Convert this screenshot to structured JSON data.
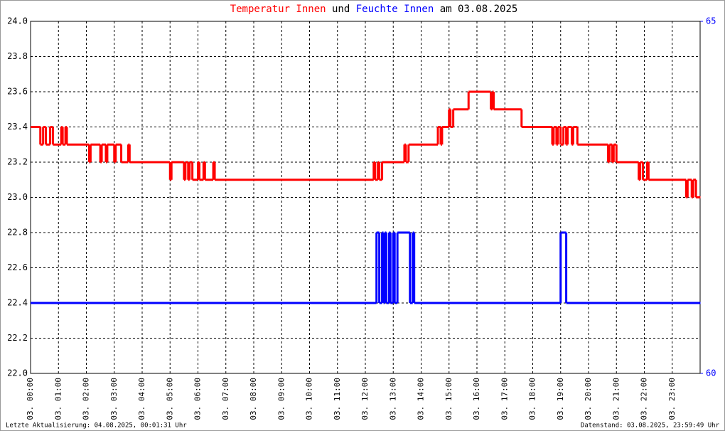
{
  "chart_data": {
    "type": "step-line",
    "title_parts": [
      "und",
      "am 03.08.2025"
    ],
    "footer_left": "Letzte Aktualisierung: 04.08.2025, 00:01:31 Uhr",
    "footer_right": "Datenstand: 03.08.2025, 23:59:49 Uhr",
    "xlim": [
      0,
      24
    ],
    "xticks": [
      {
        "value": 0,
        "label": "03. 00:00"
      },
      {
        "value": 1,
        "label": "03. 01:00"
      },
      {
        "value": 2,
        "label": "03. 02:00"
      },
      {
        "value": 3,
        "label": "03. 03:00"
      },
      {
        "value": 4,
        "label": "03. 04:00"
      },
      {
        "value": 5,
        "label": "03. 05:00"
      },
      {
        "value": 6,
        "label": "03. 06:00"
      },
      {
        "value": 7,
        "label": "03. 07:00"
      },
      {
        "value": 8,
        "label": "03. 08:00"
      },
      {
        "value": 9,
        "label": "03. 09:00"
      },
      {
        "value": 10,
        "label": "03. 10:00"
      },
      {
        "value": 11,
        "label": "03. 11:00"
      },
      {
        "value": 12,
        "label": "03. 12:00"
      },
      {
        "value": 13,
        "label": "03. 13:00"
      },
      {
        "value": 14,
        "label": "03. 14:00"
      },
      {
        "value": 15,
        "label": "03. 15:00"
      },
      {
        "value": 16,
        "label": "03. 16:00"
      },
      {
        "value": 17,
        "label": "03. 17:00"
      },
      {
        "value": 18,
        "label": "03. 18:00"
      },
      {
        "value": 19,
        "label": "03. 19:00"
      },
      {
        "value": 20,
        "label": "03. 20:00"
      },
      {
        "value": 21,
        "label": "03. 21:00"
      },
      {
        "value": 22,
        "label": "03. 22:00"
      },
      {
        "value": 23,
        "label": "03. 23:00"
      }
    ],
    "ylim": [
      22.0,
      24.0
    ],
    "yticks": [
      {
        "value": 22.0,
        "label": "22.0"
      },
      22.2,
      22.4,
      22.6,
      22.8,
      {
        "value": 23.0,
        "label": "23.0"
      },
      23.2,
      23.4,
      23.6,
      23.8,
      {
        "value": 24.0,
        "label": "24.0"
      }
    ],
    "y2lim": [
      60,
      65
    ],
    "y2ticks": [
      60,
      65
    ],
    "y2color": "#0000ff",
    "grid": true,
    "series": [
      {
        "name": "Temperatur Innen",
        "color": "#ff0000",
        "x": [
          0,
          0.35,
          0.45,
          0.55,
          0.7,
          0.8,
          1.1,
          1.15,
          1.25,
          1.3,
          2.1,
          2.15,
          2.5,
          2.55,
          2.7,
          2.75,
          3.0,
          3.05,
          3.25,
          3.5,
          3.55,
          5.0,
          5.05,
          5.5,
          5.55,
          5.65,
          5.7,
          5.8,
          6.0,
          6.05,
          6.2,
          6.25,
          6.55,
          6.6,
          12.3,
          12.35,
          12.45,
          12.5,
          12.6,
          13.4,
          13.45,
          13.55,
          14.6,
          14.7,
          14.75,
          15.0,
          15.05,
          15.15,
          15.7,
          16.5,
          16.55,
          16.6,
          17.6,
          18.7,
          18.75,
          18.85,
          18.9,
          19.0,
          19.1,
          19.2,
          19.25,
          19.4,
          19.45,
          19.6,
          20.7,
          20.75,
          20.85,
          20.9,
          21.0,
          21.8,
          21.85,
          21.95,
          22.1,
          22.15,
          23.5,
          23.55,
          23.7,
          23.75,
          23.85,
          24
        ],
        "values": [
          23.4,
          23.3,
          23.4,
          23.3,
          23.4,
          23.3,
          23.4,
          23.3,
          23.4,
          23.3,
          23.2,
          23.3,
          23.2,
          23.3,
          23.2,
          23.3,
          23.2,
          23.3,
          23.2,
          23.3,
          23.2,
          23.1,
          23.2,
          23.1,
          23.2,
          23.1,
          23.2,
          23.1,
          23.2,
          23.1,
          23.2,
          23.1,
          23.2,
          23.1,
          23.2,
          23.1,
          23.2,
          23.1,
          23.2,
          23.3,
          23.2,
          23.3,
          23.4,
          23.3,
          23.4,
          23.5,
          23.4,
          23.5,
          23.6,
          23.5,
          23.6,
          23.5,
          23.4,
          23.3,
          23.4,
          23.3,
          23.4,
          23.3,
          23.4,
          23.3,
          23.4,
          23.3,
          23.4,
          23.3,
          23.2,
          23.3,
          23.2,
          23.3,
          23.2,
          23.1,
          23.2,
          23.1,
          23.2,
          23.1,
          23.0,
          23.1,
          23.0,
          23.1,
          23.0,
          23.0
        ]
      },
      {
        "name": "Feuchte Innen",
        "color": "#0000ff",
        "axis": "y2",
        "x": [
          0,
          12.4,
          12.5,
          12.6,
          12.65,
          12.7,
          12.75,
          12.85,
          12.9,
          13.0,
          13.05,
          13.15,
          13.6,
          13.7,
          13.75,
          19.0,
          19.2,
          24
        ],
        "values": [
          61,
          62,
          61,
          62,
          61,
          62,
          61,
          62,
          61,
          62,
          61,
          62,
          61,
          62,
          61,
          62,
          61,
          61
        ]
      }
    ]
  }
}
